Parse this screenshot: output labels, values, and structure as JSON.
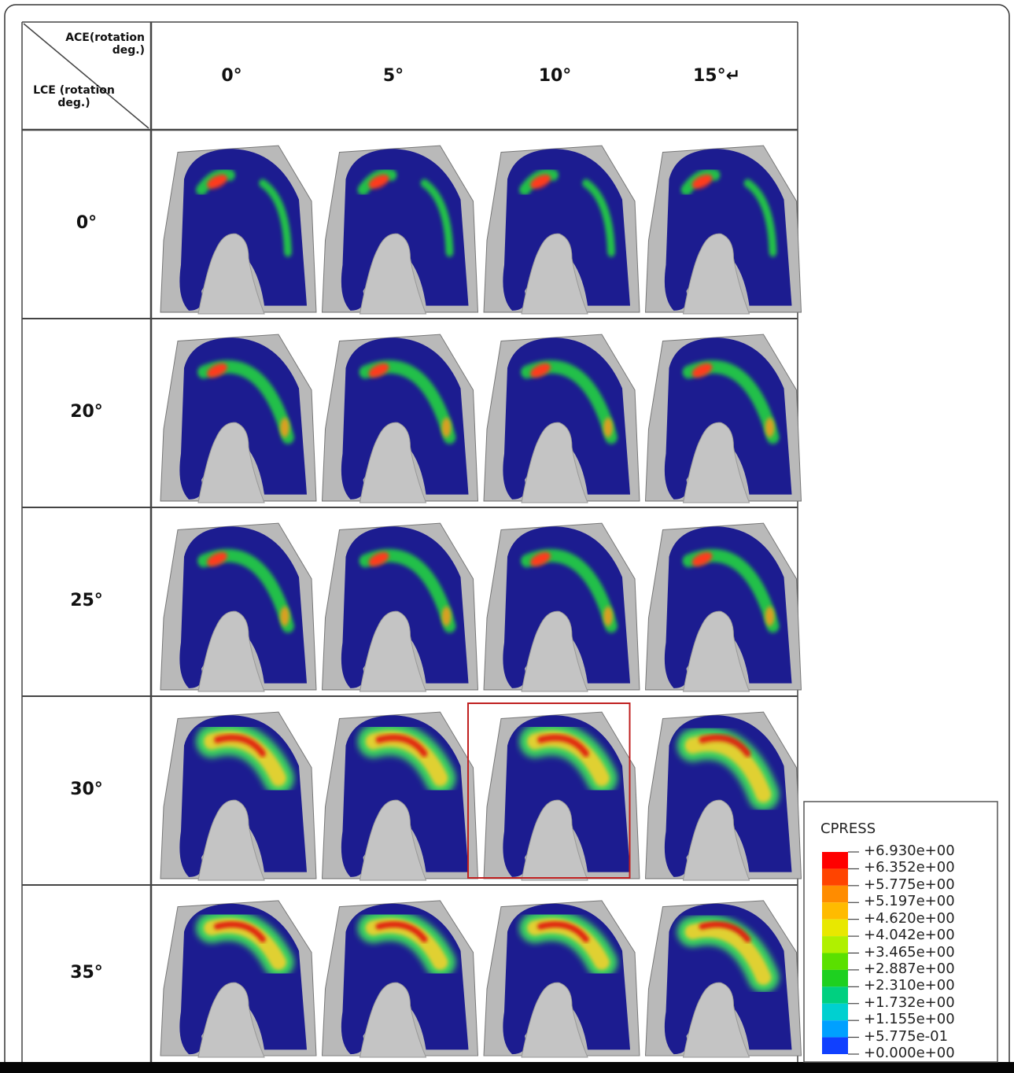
{
  "header": {
    "corner_top": "ACE(rotation deg.)",
    "corner_bottom": "LCE (rotation deg.)",
    "columns": [
      "0°",
      "5°",
      "10°",
      "15°↵"
    ]
  },
  "rows": [
    "0°",
    "20°",
    "25°",
    "30°",
    "35°"
  ],
  "legend": {
    "title": "CPRESS",
    "labels": [
      "+6.930e+00",
      "+6.352e+00",
      "+5.775e+00",
      "+5.197e+00",
      "+4.620e+00",
      "+4.042e+00",
      "+3.465e+00",
      "+2.887e+00",
      "+2.310e+00",
      "+1.732e+00",
      "+1.155e+00",
      "+5.775e-01",
      "+0.000e+00"
    ]
  }
}
